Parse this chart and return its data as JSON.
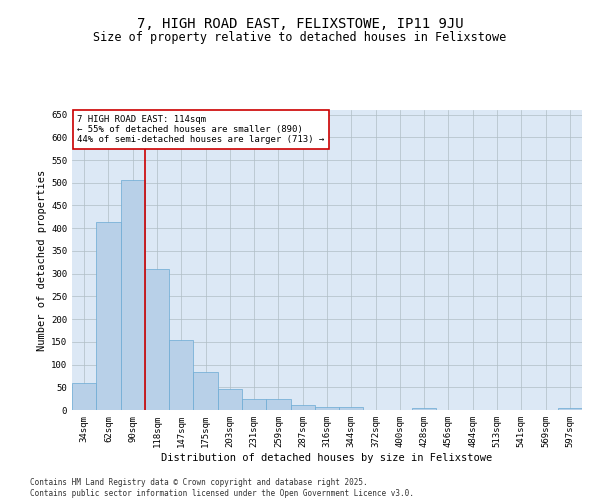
{
  "title": "7, HIGH ROAD EAST, FELIXSTOWE, IP11 9JU",
  "subtitle": "Size of property relative to detached houses in Felixstowe",
  "xlabel": "Distribution of detached houses by size in Felixstowe",
  "ylabel": "Number of detached properties",
  "categories": [
    "34sqm",
    "62sqm",
    "90sqm",
    "118sqm",
    "147sqm",
    "175sqm",
    "203sqm",
    "231sqm",
    "259sqm",
    "287sqm",
    "316sqm",
    "344sqm",
    "372sqm",
    "400sqm",
    "428sqm",
    "456sqm",
    "484sqm",
    "513sqm",
    "541sqm",
    "569sqm",
    "597sqm"
  ],
  "values": [
    60,
    413,
    507,
    311,
    153,
    83,
    46,
    24,
    24,
    10,
    7,
    7,
    0,
    0,
    4,
    0,
    0,
    0,
    0,
    0,
    5
  ],
  "bar_color": "#b8d0e8",
  "bar_edge_color": "#6aaad4",
  "bg_color": "#dce8f5",
  "fig_bg": "#ffffff",
  "grid_color": "#b0bec5",
  "vline_color": "#cc0000",
  "vline_x": 2.5,
  "annotation_text": "7 HIGH ROAD EAST: 114sqm\n← 55% of detached houses are smaller (890)\n44% of semi-detached houses are larger (713) →",
  "annotation_box_color": "#cc0000",
  "ylim": [
    0,
    660
  ],
  "yticks": [
    0,
    50,
    100,
    150,
    200,
    250,
    300,
    350,
    400,
    450,
    500,
    550,
    600,
    650
  ],
  "footer_line1": "Contains HM Land Registry data © Crown copyright and database right 2025.",
  "footer_line2": "Contains public sector information licensed under the Open Government Licence v3.0.",
  "title_fontsize": 10,
  "subtitle_fontsize": 8.5,
  "axis_label_fontsize": 7.5,
  "tick_fontsize": 6.5,
  "annotation_fontsize": 6.5,
  "footer_fontsize": 5.5
}
